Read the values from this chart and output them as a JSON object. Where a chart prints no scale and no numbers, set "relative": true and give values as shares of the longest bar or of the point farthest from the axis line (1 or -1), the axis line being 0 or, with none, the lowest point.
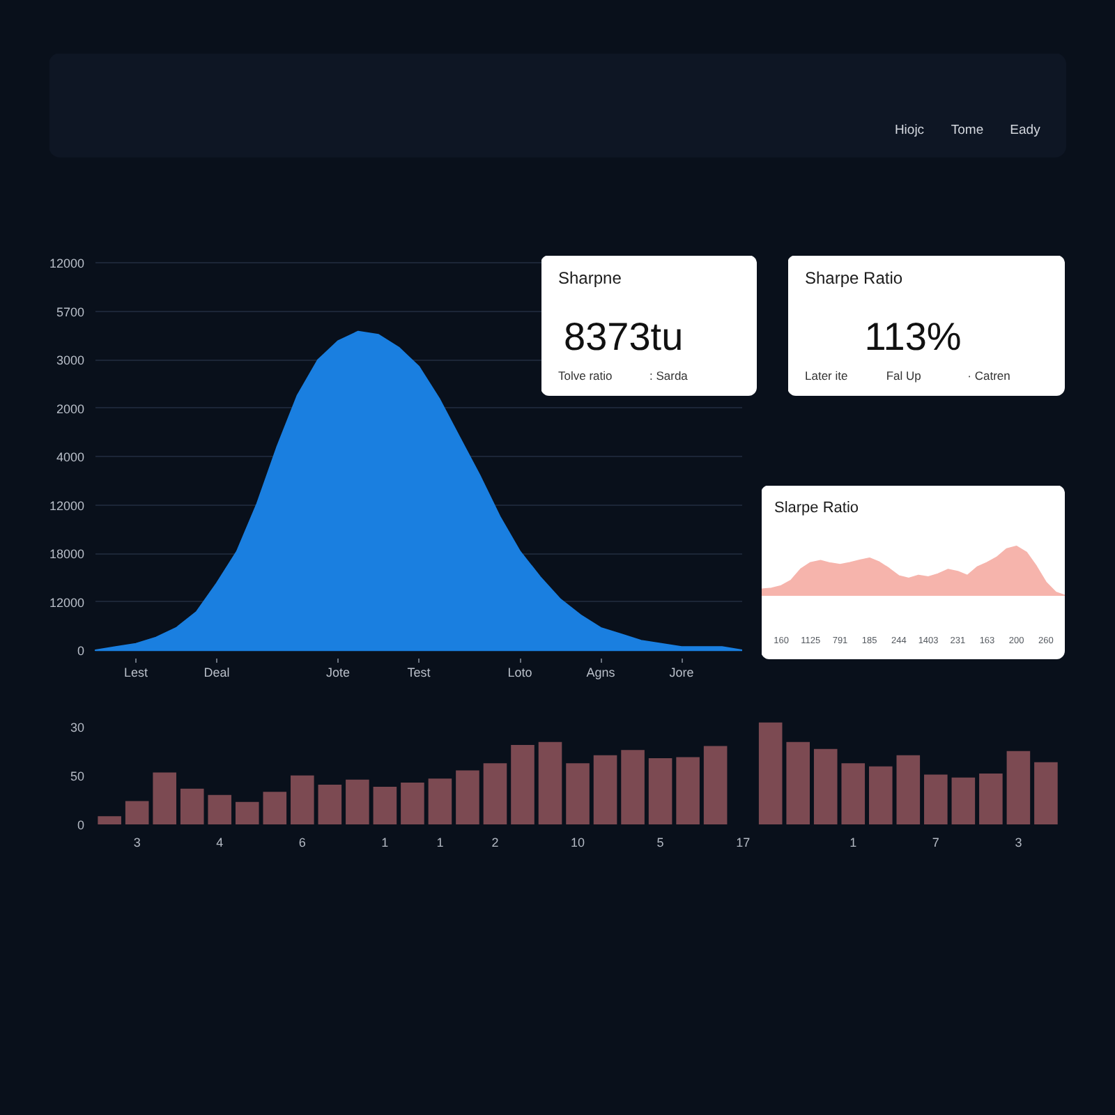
{
  "chart_data": [
    {
      "type": "other",
      "annotations": [
        "Hiojc",
        "Tome",
        "Eady"
      ]
    },
    {
      "type": "area",
      "relative": true,
      "color": "#1a7fe0",
      "grid": "y",
      "categories": [
        null,
        null,
        "Lest",
        null,
        null,
        null,
        "Deal",
        null,
        null,
        null,
        null,
        null,
        "Jote",
        null,
        null,
        null,
        "Test",
        null,
        null,
        null,
        null,
        "Loto",
        null,
        null,
        null,
        "Agns",
        null,
        null,
        null,
        "Jore",
        null,
        null,
        null
      ],
      "values": [
        0,
        0.01,
        0.02,
        0.04,
        0.07,
        0.12,
        0.21,
        0.31,
        0.46,
        0.64,
        0.8,
        0.91,
        0.97,
        1,
        0.99,
        0.95,
        0.89,
        0.79,
        0.67,
        0.55,
        0.42,
        0.31,
        0.23,
        0.16,
        0.11,
        0.07,
        0.05,
        0.03,
        0.02,
        0.01,
        0.01,
        0.01,
        0
      ],
      "annotations": [
        "12000",
        "5700",
        "3000",
        "2000",
        "4000",
        "12000",
        "18000",
        "12000",
        "0"
      ]
    },
    {
      "type": "other",
      "title": "Sharpne",
      "annotations": [
        "8373tu",
        "Tolve ratio",
        ": Sarda"
      ]
    },
    {
      "type": "other",
      "title": "Sharpe Ratio",
      "annotations": [
        "113%",
        "Later ite",
        "Fal Up",
        "· Catren"
      ]
    },
    {
      "type": "area",
      "title": "Slarpe Ratio",
      "relative": true,
      "color": "#f6b4ac",
      "categories": [
        null,
        null,
        "160",
        null,
        null,
        "1125",
        null,
        null,
        "791",
        null,
        null,
        "185",
        null,
        null,
        "244",
        null,
        null,
        "1403",
        null,
        null,
        "231",
        null,
        null,
        "163",
        null,
        null,
        "200",
        null,
        null,
        "260",
        null,
        null
      ],
      "values": [
        0.13,
        0.15,
        0.2,
        0.31,
        0.54,
        0.67,
        0.71,
        0.66,
        0.63,
        0.67,
        0.72,
        0.76,
        0.68,
        0.55,
        0.4,
        0.35,
        0.41,
        0.38,
        0.44,
        0.53,
        0.49,
        0.41,
        0.58,
        0.67,
        0.78,
        0.95,
        1,
        0.88,
        0.6,
        0.27,
        0.07,
        0
      ]
    },
    {
      "type": "bar",
      "relative": true,
      "color": "#7c4a52",
      "categories": [
        null,
        "3",
        null,
        null,
        "4",
        null,
        null,
        "6",
        null,
        null,
        "1",
        null,
        "1",
        null,
        "2",
        null,
        null,
        "10",
        null,
        null,
        "5",
        null,
        null,
        "17",
        null,
        null,
        null,
        "1",
        null,
        null,
        "7",
        null,
        null,
        "3",
        null
      ],
      "values": [
        0.08,
        0.23,
        0.51,
        0.35,
        0.29,
        0.22,
        0.32,
        0.48,
        0.39,
        0.44,
        0.37,
        0.41,
        0.45,
        0.53,
        0.6,
        0.78,
        0.81,
        0.6,
        0.68,
        0.73,
        0.65,
        0.66,
        0.77,
        null,
        1,
        0.81,
        0.74,
        0.6,
        0.57,
        0.68,
        0.49,
        0.46,
        0.5,
        0.72,
        0.61
      ],
      "annotations": [
        "30",
        "50",
        "0"
      ]
    }
  ]
}
